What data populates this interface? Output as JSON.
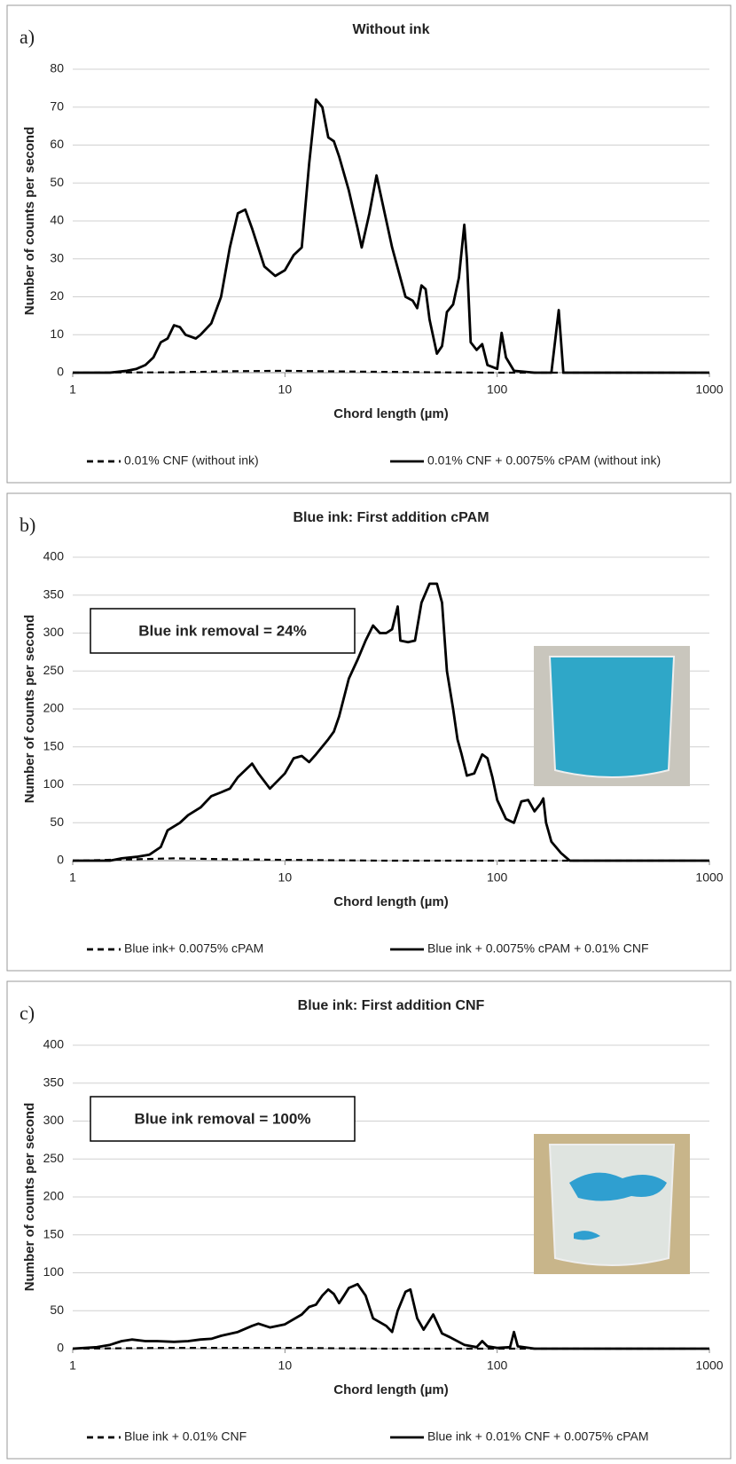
{
  "chart_data": [
    {
      "type": "line",
      "panel_label": "a)",
      "title": "Without ink",
      "xlabel": "Chord length (µm)",
      "ylabel": "Number of counts per second",
      "log_x": true,
      "grid": true,
      "legend": "bottom",
      "xlim": [
        1,
        1000
      ],
      "xticks": [
        1,
        10,
        100,
        1000
      ],
      "ylim": [
        0,
        80
      ],
      "yticks": [
        0,
        10,
        20,
        30,
        40,
        50,
        60,
        70,
        80
      ],
      "series": [
        {
          "name": "0.01% CNF (without ink)",
          "color": "#000000",
          "dash": true,
          "x": [
            1,
            3,
            6,
            10,
            20,
            50,
            100,
            1000
          ],
          "values": [
            0,
            0.1,
            0.4,
            0.5,
            0.3,
            0.1,
            0,
            0
          ]
        },
        {
          "name": "0.01% CNF + 0.0075% cPAM (without ink)",
          "color": "#000000",
          "dash": false,
          "x": [
            1,
            1.5,
            1.8,
            2,
            2.2,
            2.4,
            2.6,
            2.8,
            3,
            3.2,
            3.4,
            3.8,
            4,
            4.5,
            5,
            5.5,
            6,
            6.5,
            7,
            8,
            9,
            10,
            11,
            12,
            13,
            14,
            15,
            16,
            17,
            18,
            20,
            22,
            23,
            25,
            27,
            29,
            32,
            35,
            37,
            40,
            42,
            44,
            46,
            48,
            52,
            55,
            58,
            62,
            66,
            70,
            72,
            75,
            80,
            85,
            90,
            100,
            105,
            110,
            120,
            150,
            180,
            195,
            205,
            300,
            1000
          ],
          "values": [
            0,
            0,
            0.5,
            1,
            2,
            4,
            8,
            9,
            12.5,
            12,
            10,
            9,
            10,
            13,
            20,
            33,
            42,
            43,
            38,
            28,
            25.5,
            27,
            31,
            33,
            55,
            72,
            70,
            62,
            61,
            57,
            48,
            38,
            33,
            42,
            52,
            44,
            33,
            25,
            20,
            19,
            17,
            23,
            22,
            14,
            5,
            7,
            16,
            18,
            25,
            39,
            30,
            8,
            6,
            7.5,
            2,
            1,
            10.5,
            4,
            0.5,
            0,
            0,
            16.5,
            0,
            0,
            0
          ]
        }
      ]
    },
    {
      "type": "line",
      "panel_label": "b)",
      "title": "Blue ink: First addition cPAM",
      "xlabel": "Chord length (µm)",
      "ylabel": "Number of counts per second",
      "annotation": "Blue ink removal = 24%",
      "log_x": true,
      "grid": true,
      "legend": "bottom",
      "xlim": [
        1,
        1000
      ],
      "xticks": [
        1,
        10,
        100,
        1000
      ],
      "ylim": [
        0,
        400
      ],
      "yticks": [
        0,
        50,
        100,
        150,
        200,
        250,
        300,
        350,
        400
      ],
      "series": [
        {
          "name": "Blue ink+ 0.0075% cPAM",
          "color": "#000000",
          "dash": true,
          "x": [
            1,
            3,
            5,
            10,
            30,
            1000
          ],
          "values": [
            0,
            3,
            2,
            1,
            0,
            0
          ]
        },
        {
          "name": "Blue ink + 0.0075% cPAM + 0.01% CNF",
          "color": "#000000",
          "dash": false,
          "x": [
            1,
            1.5,
            1.7,
            2,
            2.3,
            2.6,
            2.8,
            3.2,
            3.5,
            4,
            4.5,
            5,
            5.5,
            6,
            7,
            7.5,
            8.5,
            10,
            11,
            12,
            13,
            14,
            16,
            17,
            18,
            20,
            22,
            24,
            26,
            28,
            30,
            32,
            34,
            35,
            38,
            41,
            44,
            48,
            52,
            55,
            58,
            62,
            65,
            68,
            72,
            78,
            85,
            90,
            95,
            100,
            110,
            120,
            130,
            140,
            150,
            160,
            165,
            170,
            180,
            200,
            220,
            400,
            1000
          ],
          "values": [
            0,
            0,
            3,
            5,
            8,
            18,
            40,
            50,
            60,
            70,
            85,
            90,
            95,
            110,
            128,
            115,
            95,
            115,
            135,
            138,
            130,
            140,
            160,
            170,
            190,
            240,
            265,
            290,
            310,
            300,
            300,
            305,
            335,
            290,
            288,
            290,
            340,
            365,
            365,
            340,
            250,
            200,
            160,
            140,
            112,
            115,
            140,
            135,
            110,
            80,
            55,
            50,
            78,
            80,
            65,
            75,
            82,
            50,
            25,
            10,
            0,
            0,
            0
          ]
        }
      ]
    },
    {
      "type": "line",
      "panel_label": "c)",
      "title": "Blue ink: First addition CNF",
      "xlabel": "Chord length (µm)",
      "ylabel": "Number of counts per second",
      "annotation": "Blue ink removal = 100%",
      "log_x": true,
      "grid": true,
      "legend": "bottom",
      "xlim": [
        1,
        1000
      ],
      "xticks": [
        1,
        10,
        100,
        1000
      ],
      "ylim": [
        0,
        400
      ],
      "yticks": [
        0,
        50,
        100,
        150,
        200,
        250,
        300,
        350,
        400
      ],
      "series": [
        {
          "name": "Blue ink + 0.01% CNF",
          "color": "#000000",
          "dash": true,
          "x": [
            1,
            3,
            10,
            30,
            1000
          ],
          "values": [
            0,
            1,
            1,
            0,
            0
          ]
        },
        {
          "name": "Blue ink + 0.01% CNF + 0.0075% cPAM",
          "color": "#000000",
          "dash": false,
          "x": [
            1,
            1.3,
            1.5,
            1.7,
            1.9,
            2.2,
            2.5,
            3,
            3.5,
            4,
            4.5,
            5,
            6,
            7,
            7.5,
            8.5,
            10,
            12,
            13,
            14,
            15,
            16,
            17,
            18,
            19,
            20,
            22,
            24,
            26,
            30,
            32,
            34,
            37,
            39,
            42,
            45,
            50,
            55,
            60,
            70,
            80,
            85,
            90,
            100,
            115,
            120,
            125,
            150,
            1000
          ],
          "values": [
            0,
            2,
            5,
            10,
            12,
            10,
            10,
            9,
            10,
            12,
            13,
            17,
            22,
            30,
            33,
            28,
            32,
            45,
            55,
            58,
            70,
            78,
            72,
            60,
            70,
            80,
            85,
            70,
            40,
            30,
            22,
            50,
            75,
            78,
            40,
            25,
            45,
            20,
            15,
            5,
            2,
            10,
            3,
            1,
            2,
            22,
            3,
            0,
            0
          ]
        }
      ]
    }
  ]
}
